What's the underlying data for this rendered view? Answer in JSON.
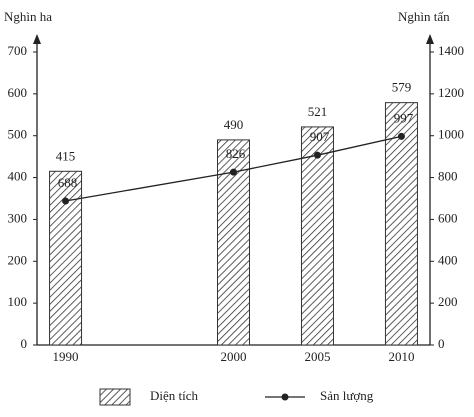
{
  "chart_data": {
    "type": "bar",
    "ylabel": "Nghìn ha",
    "y2label": "Nghìn tấn",
    "x": [
      1990,
      2000,
      2005,
      2010
    ],
    "xlim": [
      1988.3,
      2011.7
    ],
    "ylim": [
      0,
      700
    ],
    "yticks": [
      0,
      100,
      200,
      300,
      400,
      500,
      600,
      700
    ],
    "y2lim": [
      0,
      1400
    ],
    "y2ticks": [
      0,
      200,
      400,
      600,
      800,
      1000,
      1200,
      1400
    ],
    "series": [
      {
        "name": "Diện tích",
        "type": "bar",
        "color": "#333333",
        "values": [
          415,
          490,
          521,
          579
        ]
      },
      {
        "name": "Sản lượng",
        "type": "line",
        "axis": "y2",
        "color": "#222222",
        "values": [
          688,
          826,
          907,
          997
        ]
      }
    ]
  }
}
